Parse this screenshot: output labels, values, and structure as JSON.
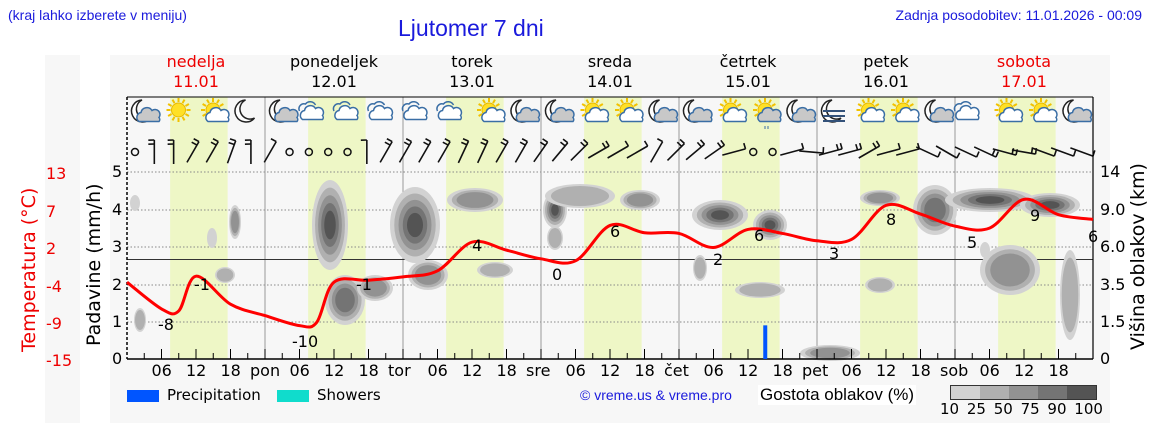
{
  "header": {
    "hint": "(kraj lahko izberete v meniju)",
    "title": "Ljutomer 7 dni",
    "updated": "Zadnja posodobitev: 11.01.2026 - 00:09"
  },
  "days": [
    {
      "name": "nedelja",
      "date": "11.01",
      "weekend": true
    },
    {
      "name": "ponedeljek",
      "date": "12.01",
      "weekend": false
    },
    {
      "name": "torek",
      "date": "13.01",
      "weekend": false
    },
    {
      "name": "sreda",
      "date": "14.01",
      "weekend": false
    },
    {
      "name": "četrtek",
      "date": "15.01",
      "weekend": false
    },
    {
      "name": "petek",
      "date": "16.01",
      "weekend": false
    },
    {
      "name": "sobota",
      "date": "17.01",
      "weekend": true
    }
  ],
  "axes": {
    "temp_label": "Temperatura (°C)",
    "temp_ticks": [
      "13",
      "7",
      "2",
      "-4",
      "-9",
      "-15"
    ],
    "precip_label": "Padavine (mm/h)",
    "precip_ticks": [
      "5",
      "4",
      "3",
      "2",
      "1",
      "0"
    ],
    "cloud_label": "Višina oblakov (km)",
    "cloud_ticks": [
      "14",
      "9.0",
      "6.0",
      "3.5",
      "1.5",
      "0"
    ],
    "x_ticks": [
      "06",
      "12",
      "18",
      "pon",
      "06",
      "12",
      "18",
      "tor",
      "06",
      "12",
      "18",
      "sre",
      "06",
      "12",
      "18",
      "čet",
      "06",
      "12",
      "18",
      "pet",
      "06",
      "12",
      "18",
      "sob",
      "06",
      "12",
      "18"
    ]
  },
  "legend": {
    "precipitation": "Precipitation",
    "showers": "Showers",
    "precipitation_color": "#0055ff",
    "showers_color": "#10dccc",
    "copyright": "© vreme.us & vreme.pro",
    "cloud_density_label": "Gostota oblakov (%)",
    "cloud_density_ticks": "10 25 50 75 90 100",
    "cloud_density_colors": [
      "#d2d2d2",
      "#b0b0b0",
      "#929292",
      "#747474",
      "#545454"
    ]
  },
  "icons": [
    "moon-cloud",
    "sun",
    "sun-cloud",
    "moon",
    "moon-cloud",
    "cloud",
    "cloud",
    "cloud",
    "cloud",
    "cloud",
    "sun-cloud",
    "moon-cloud",
    "moon-cloud",
    "sun-cloud",
    "sun-cloud",
    "moon-cloud",
    "moon-cloud",
    "sun-cloud",
    "sun-cloud-drizzle",
    "moon-cloud",
    "moon-fog",
    "sun-cloud",
    "sun-cloud",
    "moon-cloud",
    "cloud",
    "sun-cloud",
    "sun-cloud",
    "moon-cloud"
  ],
  "chart_data": {
    "type": "line",
    "title": "Ljutomer 7 dni",
    "xlabel": "",
    "ylabel": "Temperatura (°C)",
    "ylim": [
      -15,
      13
    ],
    "x": [
      "11.01 00",
      "11.01 06",
      "11.01 09",
      "11.01 12",
      "11.01 18",
      "12.01 00",
      "12.01 06",
      "12.01 09",
      "12.01 12",
      "12.01 18",
      "13.01 00",
      "13.01 06",
      "13.01 12",
      "13.01 18",
      "14.01 00",
      "14.01 06",
      "14.01 12",
      "14.01 18",
      "15.01 00",
      "15.01 06",
      "15.01 12",
      "15.01 18",
      "16.01 00",
      "16.01 06",
      "16.01 12",
      "16.01 18",
      "17.01 00",
      "17.01 06",
      "17.01 12",
      "17.01 18",
      "18.01 00"
    ],
    "series": [
      {
        "name": "Temperatura",
        "color": "#ff0000",
        "values": [
          -3.5,
          -7.5,
          -7.8,
          -2.6,
          -6.8,
          -8.5,
          -10.0,
          -9.5,
          -3.5,
          -3.2,
          -2.7,
          -1.8,
          2.5,
          1.3,
          0.0,
          -0.3,
          5.0,
          3.9,
          3.8,
          1.7,
          4.4,
          3.8,
          2.7,
          2.9,
          8.0,
          6.7,
          4.9,
          4.6,
          8.9,
          6.6,
          5.9
        ]
      },
      {
        "name": "Precipitation (mm/h)",
        "color": "#0055ff",
        "points": [
          {
            "x": "15.01 15",
            "value": 0.9
          }
        ]
      }
    ],
    "annotations": [
      {
        "x": "11.01 03",
        "label": "-8"
      },
      {
        "x": "11.01 12",
        "label": "-1"
      },
      {
        "x": "12.01 06",
        "label": "-10"
      },
      {
        "x": "12.01 15",
        "label": "-1"
      },
      {
        "x": "13.01 12",
        "label": "4"
      },
      {
        "x": "14.01 00",
        "label": "0"
      },
      {
        "x": "14.01 12",
        "label": "6"
      },
      {
        "x": "15.01 03",
        "label": "2"
      },
      {
        "x": "15.01 12",
        "label": "6"
      },
      {
        "x": "16.01 03",
        "label": "3"
      },
      {
        "x": "16.01 12",
        "label": "8"
      },
      {
        "x": "17.01 00",
        "label": "5"
      },
      {
        "x": "17.01 12",
        "label": "9"
      },
      {
        "x": "18.01 00",
        "label": "6"
      }
    ],
    "secondary_axes": {
      "precip_ylim": [
        0,
        5
      ],
      "cloud_height_ticks_km": [
        0,
        1.5,
        3.5,
        6.0,
        9.0,
        14
      ]
    },
    "grid": true
  }
}
